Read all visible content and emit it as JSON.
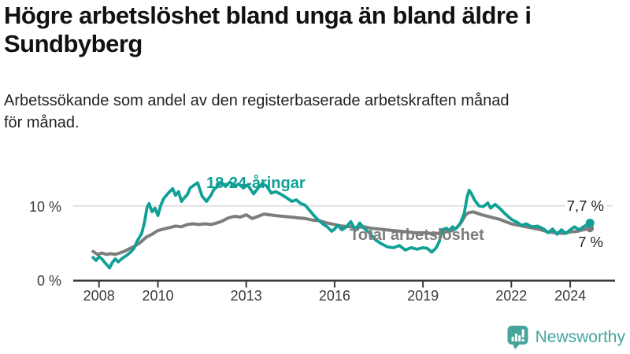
{
  "header": {
    "title": "Högre arbetslöshet bland unga än bland äldre i\nSundbyberg",
    "subtitle": "Arbetssökande som andel av den registerbaserade arbetskraften månad\nför månad."
  },
  "branding": {
    "logo_text": "Newsworthy",
    "logo_color": "#45a49b",
    "logo_icon": "speech-bubble-with-bar-chart-and-exclamation"
  },
  "chart_data": {
    "type": "line",
    "unit": "%",
    "x_ticks": [
      "2008",
      "2010",
      "2013",
      "2016",
      "2019",
      "2022",
      "2024"
    ],
    "y_ticks": [
      {
        "value": 0,
        "label": "0 %"
      },
      {
        "value": 10,
        "label": "10 %"
      }
    ],
    "xlim": [
      2007.8,
      2024.75
    ],
    "ylim": [
      0,
      15.5
    ],
    "grid": "single horizontal gridline at 10 %",
    "legend_position": "inline labels next to lines",
    "axis_color": "#3a3a3a",
    "gridline_color": "#d9d9d9",
    "series": [
      {
        "name": "Total arbetslöshet",
        "color": "#7d7d7d",
        "end_value": 7.0,
        "end_label": "7 %",
        "points": [
          [
            2007.8,
            3.9
          ],
          [
            2007.95,
            3.5
          ],
          [
            2008.1,
            3.7
          ],
          [
            2008.25,
            3.5
          ],
          [
            2008.4,
            3.6
          ],
          [
            2008.55,
            3.5
          ],
          [
            2008.7,
            3.7
          ],
          [
            2008.85,
            3.9
          ],
          [
            2009.0,
            4.2
          ],
          [
            2009.2,
            4.6
          ],
          [
            2009.4,
            5.1
          ],
          [
            2009.6,
            5.8
          ],
          [
            2009.8,
            6.2
          ],
          [
            2010.0,
            6.7
          ],
          [
            2010.2,
            6.9
          ],
          [
            2010.4,
            7.1
          ],
          [
            2010.6,
            7.3
          ],
          [
            2010.8,
            7.2
          ],
          [
            2011.0,
            7.5
          ],
          [
            2011.2,
            7.6
          ],
          [
            2011.4,
            7.5
          ],
          [
            2011.6,
            7.6
          ],
          [
            2011.8,
            7.5
          ],
          [
            2012.0,
            7.7
          ],
          [
            2012.2,
            8.0
          ],
          [
            2012.4,
            8.4
          ],
          [
            2012.6,
            8.6
          ],
          [
            2012.8,
            8.5
          ],
          [
            2013.0,
            8.8
          ],
          [
            2013.2,
            8.3
          ],
          [
            2013.4,
            8.6
          ],
          [
            2013.6,
            8.9
          ],
          [
            2013.8,
            8.8
          ],
          [
            2014.0,
            8.7
          ],
          [
            2014.25,
            8.6
          ],
          [
            2014.5,
            8.5
          ],
          [
            2014.75,
            8.4
          ],
          [
            2015.0,
            8.3
          ],
          [
            2015.25,
            8.1
          ],
          [
            2015.5,
            8.0
          ],
          [
            2015.75,
            7.7
          ],
          [
            2016.0,
            7.5
          ],
          [
            2016.25,
            7.3
          ],
          [
            2016.5,
            7.2
          ],
          [
            2016.75,
            7.1
          ],
          [
            2017.0,
            7.2
          ],
          [
            2017.25,
            7.0
          ],
          [
            2017.5,
            6.9
          ],
          [
            2017.75,
            6.8
          ],
          [
            2018.0,
            6.7
          ],
          [
            2018.25,
            6.6
          ],
          [
            2018.5,
            6.5
          ],
          [
            2018.75,
            6.4
          ],
          [
            2019.0,
            6.4
          ],
          [
            2019.25,
            6.3
          ],
          [
            2019.5,
            6.3
          ],
          [
            2019.75,
            6.5
          ],
          [
            2020.0,
            6.7
          ],
          [
            2020.15,
            7.1
          ],
          [
            2020.3,
            7.8
          ],
          [
            2020.45,
            8.8
          ],
          [
            2020.55,
            9.1
          ],
          [
            2020.7,
            9.2
          ],
          [
            2020.85,
            9.0
          ],
          [
            2021.0,
            8.8
          ],
          [
            2021.2,
            8.6
          ],
          [
            2021.4,
            8.4
          ],
          [
            2021.6,
            8.2
          ],
          [
            2021.8,
            7.9
          ],
          [
            2022.0,
            7.6
          ],
          [
            2022.25,
            7.4
          ],
          [
            2022.5,
            7.2
          ],
          [
            2022.75,
            7.0
          ],
          [
            2023.0,
            6.8
          ],
          [
            2023.25,
            6.5
          ],
          [
            2023.5,
            6.4
          ],
          [
            2023.75,
            6.3
          ],
          [
            2024.0,
            6.5
          ],
          [
            2024.25,
            6.6
          ],
          [
            2024.45,
            6.8
          ],
          [
            2024.67,
            7.0
          ]
        ]
      },
      {
        "name": "18-24-åringar",
        "color": "#10a096",
        "end_value": 7.7,
        "end_label": "7,7 %",
        "points": [
          [
            2007.8,
            3.1
          ],
          [
            2007.9,
            2.7
          ],
          [
            2008.0,
            3.2
          ],
          [
            2008.1,
            2.9
          ],
          [
            2008.2,
            2.4
          ],
          [
            2008.36,
            1.7
          ],
          [
            2008.45,
            2.4
          ],
          [
            2008.55,
            2.9
          ],
          [
            2008.65,
            2.5
          ],
          [
            2008.8,
            3.0
          ],
          [
            2008.95,
            3.4
          ],
          [
            2009.1,
            3.9
          ],
          [
            2009.2,
            4.4
          ],
          [
            2009.3,
            5.3
          ],
          [
            2009.45,
            6.3
          ],
          [
            2009.55,
            7.9
          ],
          [
            2009.63,
            9.8
          ],
          [
            2009.7,
            10.3
          ],
          [
            2009.8,
            9.2
          ],
          [
            2009.9,
            9.7
          ],
          [
            2010.0,
            8.7
          ],
          [
            2010.1,
            10.1
          ],
          [
            2010.2,
            11.0
          ],
          [
            2010.35,
            11.7
          ],
          [
            2010.5,
            12.3
          ],
          [
            2010.6,
            11.4
          ],
          [
            2010.7,
            11.9
          ],
          [
            2010.8,
            10.6
          ],
          [
            2010.9,
            11.1
          ],
          [
            2011.0,
            11.5
          ],
          [
            2011.1,
            12.4
          ],
          [
            2011.2,
            12.7
          ],
          [
            2011.35,
            13.1
          ],
          [
            2011.5,
            11.3
          ],
          [
            2011.65,
            10.6
          ],
          [
            2011.8,
            11.4
          ],
          [
            2011.9,
            12.2
          ],
          [
            2012.0,
            12.5
          ],
          [
            2012.15,
            13.2
          ],
          [
            2012.3,
            12.6
          ],
          [
            2012.45,
            13.2
          ],
          [
            2012.6,
            12.7
          ],
          [
            2012.75,
            12.9
          ],
          [
            2012.9,
            12.4
          ],
          [
            2013.05,
            12.8
          ],
          [
            2013.25,
            11.6
          ],
          [
            2013.4,
            12.4
          ],
          [
            2013.55,
            13.0
          ],
          [
            2013.7,
            12.6
          ],
          [
            2013.85,
            11.7
          ],
          [
            2014.0,
            11.9
          ],
          [
            2014.2,
            11.5
          ],
          [
            2014.4,
            11.0
          ],
          [
            2014.55,
            10.6
          ],
          [
            2014.7,
            10.8
          ],
          [
            2014.85,
            10.3
          ],
          [
            2015.0,
            10.1
          ],
          [
            2015.15,
            9.4
          ],
          [
            2015.3,
            8.7
          ],
          [
            2015.45,
            8.1
          ],
          [
            2015.6,
            7.6
          ],
          [
            2015.75,
            7.2
          ],
          [
            2015.9,
            6.6
          ],
          [
            2016.0,
            6.9
          ],
          [
            2016.1,
            7.4
          ],
          [
            2016.25,
            6.8
          ],
          [
            2016.4,
            7.2
          ],
          [
            2016.55,
            7.9
          ],
          [
            2016.7,
            6.7
          ],
          [
            2016.85,
            7.7
          ],
          [
            2017.0,
            7.0
          ],
          [
            2017.2,
            6.3
          ],
          [
            2017.4,
            5.4
          ],
          [
            2017.6,
            4.9
          ],
          [
            2017.8,
            4.5
          ],
          [
            2018.0,
            4.4
          ],
          [
            2018.2,
            4.7
          ],
          [
            2018.4,
            4.1
          ],
          [
            2018.6,
            4.4
          ],
          [
            2018.8,
            4.2
          ],
          [
            2019.0,
            4.4
          ],
          [
            2019.15,
            4.3
          ],
          [
            2019.3,
            3.8
          ],
          [
            2019.45,
            4.4
          ],
          [
            2019.55,
            5.2
          ],
          [
            2019.65,
            6.8
          ],
          [
            2019.8,
            7.0
          ],
          [
            2019.9,
            6.7
          ],
          [
            2020.0,
            7.2
          ],
          [
            2020.1,
            6.9
          ],
          [
            2020.25,
            7.5
          ],
          [
            2020.4,
            9.0
          ],
          [
            2020.5,
            11.2
          ],
          [
            2020.57,
            12.1
          ],
          [
            2020.65,
            11.6
          ],
          [
            2020.75,
            10.8
          ],
          [
            2020.9,
            10.0
          ],
          [
            2021.05,
            9.9
          ],
          [
            2021.2,
            10.4
          ],
          [
            2021.3,
            9.7
          ],
          [
            2021.45,
            10.2
          ],
          [
            2021.6,
            9.7
          ],
          [
            2021.8,
            8.9
          ],
          [
            2022.0,
            8.2
          ],
          [
            2022.2,
            7.8
          ],
          [
            2022.35,
            7.4
          ],
          [
            2022.5,
            7.6
          ],
          [
            2022.7,
            7.2
          ],
          [
            2022.9,
            7.3
          ],
          [
            2023.1,
            6.9
          ],
          [
            2023.25,
            6.4
          ],
          [
            2023.4,
            6.9
          ],
          [
            2023.55,
            6.2
          ],
          [
            2023.7,
            6.8
          ],
          [
            2023.85,
            6.3
          ],
          [
            2024.0,
            6.8
          ],
          [
            2024.15,
            7.2
          ],
          [
            2024.3,
            6.8
          ],
          [
            2024.45,
            7.2
          ],
          [
            2024.67,
            7.7
          ]
        ]
      }
    ]
  }
}
